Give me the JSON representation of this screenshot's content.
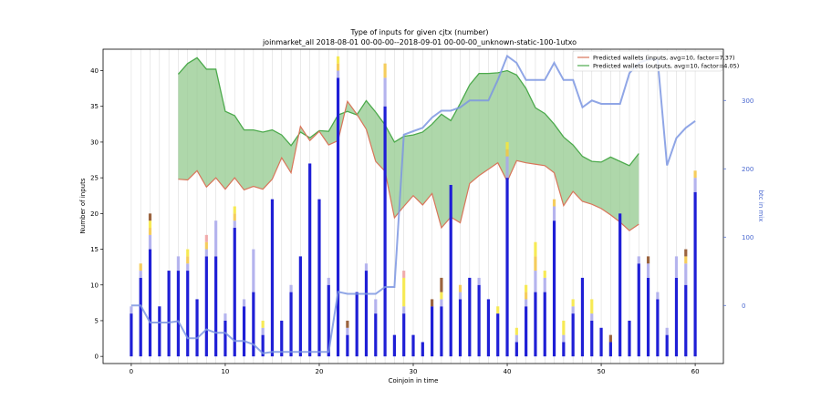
{
  "chart_data": {
    "type": "bar",
    "title": "Type of inputs for given cjtx (number)",
    "subtitle": "joinmarket_all 2018-08-01 00-00-00--2018-09-01 00-00-00_unknown-static-100-1utxo",
    "xlabel": "Coinjoin in time",
    "ylabel": "Number of inputs",
    "ylabel_right": "btc in mix",
    "xlim": [
      -3,
      63
    ],
    "ylim": [
      -1,
      43
    ],
    "ylim_right": [
      -85,
      375
    ],
    "x_ticks": [
      0,
      10,
      20,
      30,
      40,
      50,
      60
    ],
    "y_ticks": [
      0,
      5,
      10,
      15,
      20,
      25,
      30,
      35,
      40
    ],
    "y_ticks_right": [
      0,
      100,
      200,
      300
    ],
    "grid": "vertical",
    "legend_position": "top-right",
    "colors": {
      "bar_main": "#1f1fd6",
      "bar_lavender": "#a9a8ec",
      "bar_gold": "#f5c542",
      "bar_yellow": "#f7e83a",
      "bar_brown": "#8b4a1f",
      "bar_pink": "#f0a0a0",
      "band_fill": "#93c98e",
      "band_line": "#4caa4c",
      "lower_line": "#d9755a",
      "right_line": "#7d96e2",
      "right_axis": "#4a68d0"
    },
    "x": [
      0,
      1,
      2,
      3,
      4,
      5,
      6,
      7,
      8,
      9,
      10,
      11,
      12,
      13,
      14,
      15,
      16,
      17,
      18,
      19,
      20,
      21,
      22,
      23,
      24,
      25,
      26,
      27,
      28,
      29,
      30,
      31,
      32,
      33,
      34,
      35,
      36,
      37,
      38,
      39,
      40,
      41,
      42,
      43,
      44,
      45,
      46,
      47,
      48,
      49,
      50,
      51,
      52,
      53,
      54,
      55,
      56,
      57,
      58,
      59,
      60
    ],
    "stack_series": [
      {
        "key": "main",
        "values": [
          6,
          11,
          15,
          7,
          12,
          12,
          12,
          8,
          14,
          14,
          5,
          18,
          7,
          9,
          3,
          22,
          5,
          9,
          14,
          27,
          22,
          10,
          39,
          3,
          9,
          12,
          6,
          35,
          3,
          6,
          3,
          2,
          7,
          7,
          24,
          8,
          11,
          10,
          8,
          6,
          25,
          2,
          7,
          9,
          9,
          19,
          2,
          6,
          11,
          5,
          4,
          2,
          20,
          5,
          13,
          11,
          8,
          3,
          11,
          10,
          23
        ]
      },
      {
        "key": "lavender",
        "values": [
          1,
          1,
          2,
          0,
          0,
          2,
          1,
          0,
          1,
          5,
          1,
          1,
          1,
          6,
          1,
          0,
          0,
          1,
          0,
          0,
          0,
          1,
          1,
          1,
          0,
          1,
          2,
          4,
          0,
          1,
          0,
          0,
          0,
          1,
          0,
          1,
          0,
          1,
          0,
          0,
          3,
          1,
          1,
          3,
          2,
          2,
          1,
          1,
          0,
          1,
          0,
          0,
          0,
          0,
          1,
          2,
          1,
          1,
          3,
          3,
          2
        ]
      },
      {
        "key": "gold",
        "values": [
          0,
          1,
          1,
          0,
          0,
          0,
          1,
          0,
          1,
          0,
          0,
          1,
          0,
          0,
          0,
          0,
          0,
          0,
          0,
          0,
          0,
          0,
          1,
          0,
          0,
          0,
          0,
          2,
          0,
          0,
          0,
          0,
          0,
          0,
          0,
          1,
          0,
          0,
          0,
          0,
          1,
          0,
          1,
          2,
          0,
          1,
          0,
          0,
          0,
          0,
          0,
          0,
          0,
          0,
          0,
          0,
          0,
          0,
          0,
          1,
          1
        ]
      },
      {
        "key": "yellow",
        "values": [
          0,
          0,
          1,
          0,
          0,
          0,
          1,
          0,
          0,
          0,
          0,
          1,
          0,
          0,
          1,
          0,
          0,
          0,
          0,
          0,
          0,
          0,
          1,
          0,
          0,
          0,
          0,
          0,
          0,
          4,
          0,
          0,
          0,
          1,
          0,
          0,
          0,
          0,
          0,
          1,
          1,
          1,
          1,
          2,
          1,
          0,
          2,
          1,
          0,
          2,
          0,
          0,
          0,
          0,
          0,
          0,
          0,
          0,
          0,
          0,
          0
        ]
      },
      {
        "key": "brown",
        "values": [
          0,
          0,
          1,
          0,
          0,
          0,
          0,
          0,
          0,
          0,
          0,
          0,
          0,
          0,
          0,
          0,
          0,
          0,
          0,
          0,
          0,
          0,
          0,
          1,
          0,
          0,
          0,
          0,
          0,
          0,
          0,
          0,
          1,
          2,
          0,
          0,
          0,
          0,
          0,
          0,
          0,
          0,
          0,
          0,
          0,
          0,
          0,
          0,
          0,
          0,
          0,
          1,
          0,
          0,
          0,
          1,
          0,
          0,
          0,
          1,
          0
        ]
      },
      {
        "key": "pink",
        "values": [
          0,
          0,
          0,
          0,
          0,
          0,
          0,
          0,
          1,
          0,
          0,
          0,
          0,
          0,
          0,
          0,
          0,
          0,
          0,
          0,
          0,
          0,
          0,
          0,
          0,
          0,
          0,
          0,
          0,
          1,
          0,
          0,
          0,
          0,
          0,
          0,
          0,
          0,
          0,
          0,
          0,
          0,
          0,
          0,
          0,
          0,
          0,
          0,
          0,
          0,
          0,
          0,
          0,
          0,
          0,
          0,
          0,
          0,
          0,
          0,
          0
        ]
      }
    ],
    "band_x": [
      5,
      6,
      7,
      8,
      9,
      10,
      11,
      12,
      13,
      14,
      15,
      16,
      17,
      18,
      19,
      20,
      21,
      22,
      23,
      24,
      25,
      26,
      27,
      28,
      29,
      30,
      31,
      32,
      33,
      34,
      35,
      36,
      37,
      38,
      39,
      40,
      41,
      42,
      43,
      44,
      45,
      46,
      47,
      48,
      49,
      50,
      51,
      52,
      53,
      54
    ],
    "band_upper": [
      39.5,
      41,
      41.8,
      40.2,
      40.2,
      34.3,
      33.7,
      31.7,
      31.7,
      31.4,
      31.7,
      31,
      29.5,
      31.4,
      30.6,
      31.6,
      31.5,
      33.8,
      34.3,
      33.8,
      35.8,
      34.2,
      32.4,
      30,
      30.8,
      31,
      31.4,
      32.5,
      33.9,
      33,
      35.4,
      38,
      39.6,
      39.6,
      39.7,
      40,
      39.4,
      37.5,
      34.8,
      34,
      32.5,
      30.7,
      29.6,
      28,
      27.3,
      27.2,
      27.9,
      27.3,
      26.7,
      28.4
    ],
    "band_lower": [
      24.8,
      24.7,
      26,
      23.7,
      25,
      23.4,
      25,
      23.3,
      23.8,
      23.4,
      24.8,
      27.8,
      25.7,
      32.2,
      30.2,
      31.5,
      29.6,
      30.2,
      35.7,
      33.9,
      31.8,
      27.3,
      25.9,
      19.4,
      21,
      22.5,
      21.2,
      22.8,
      18,
      19.5,
      18.7,
      24.2,
      25.3,
      26.2,
      27.1,
      24.5,
      27.4,
      27.1,
      26.9,
      26.7,
      25.7,
      21.1,
      23.1,
      21.7,
      21.3,
      20.7,
      19.8,
      18.8,
      17.6,
      18.5
    ],
    "legend": [
      {
        "label": "Predicted wallets (inputs, avg=10, factor=7.37)",
        "color": "#d9755a"
      },
      {
        "label": "Predicted wallets (outputs, avg=10, factor=4.05)",
        "color": "#4caa4c"
      }
    ],
    "btc_x": [
      0,
      1,
      2,
      3,
      4,
      5,
      6,
      7,
      8,
      9,
      10,
      11,
      12,
      13,
      14,
      15,
      16,
      17,
      18,
      19,
      20,
      21,
      22,
      23,
      24,
      25,
      26,
      27,
      28,
      29,
      30,
      31,
      32,
      33,
      34,
      35,
      36,
      37,
      38,
      39,
      40,
      41,
      42,
      43,
      44,
      45,
      46,
      47,
      48,
      49,
      50,
      51,
      52,
      53,
      54,
      55,
      56,
      57,
      58,
      59,
      60
    ],
    "btc_values": [
      0,
      0,
      -25,
      -25,
      -25,
      -23,
      -48,
      -48,
      -35,
      -40,
      -40,
      -52,
      -52,
      -57,
      -70,
      -68,
      -68,
      -68,
      -68,
      -68,
      -68,
      -68,
      20,
      17,
      17,
      17,
      17,
      27,
      27,
      250,
      255,
      260,
      275,
      285,
      285,
      290,
      300,
      300,
      300,
      330,
      365,
      355,
      330,
      330,
      330,
      355,
      330,
      330,
      290,
      300,
      295,
      295,
      295,
      340,
      355,
      360,
      360,
      205,
      245,
      260,
      270
    ]
  }
}
